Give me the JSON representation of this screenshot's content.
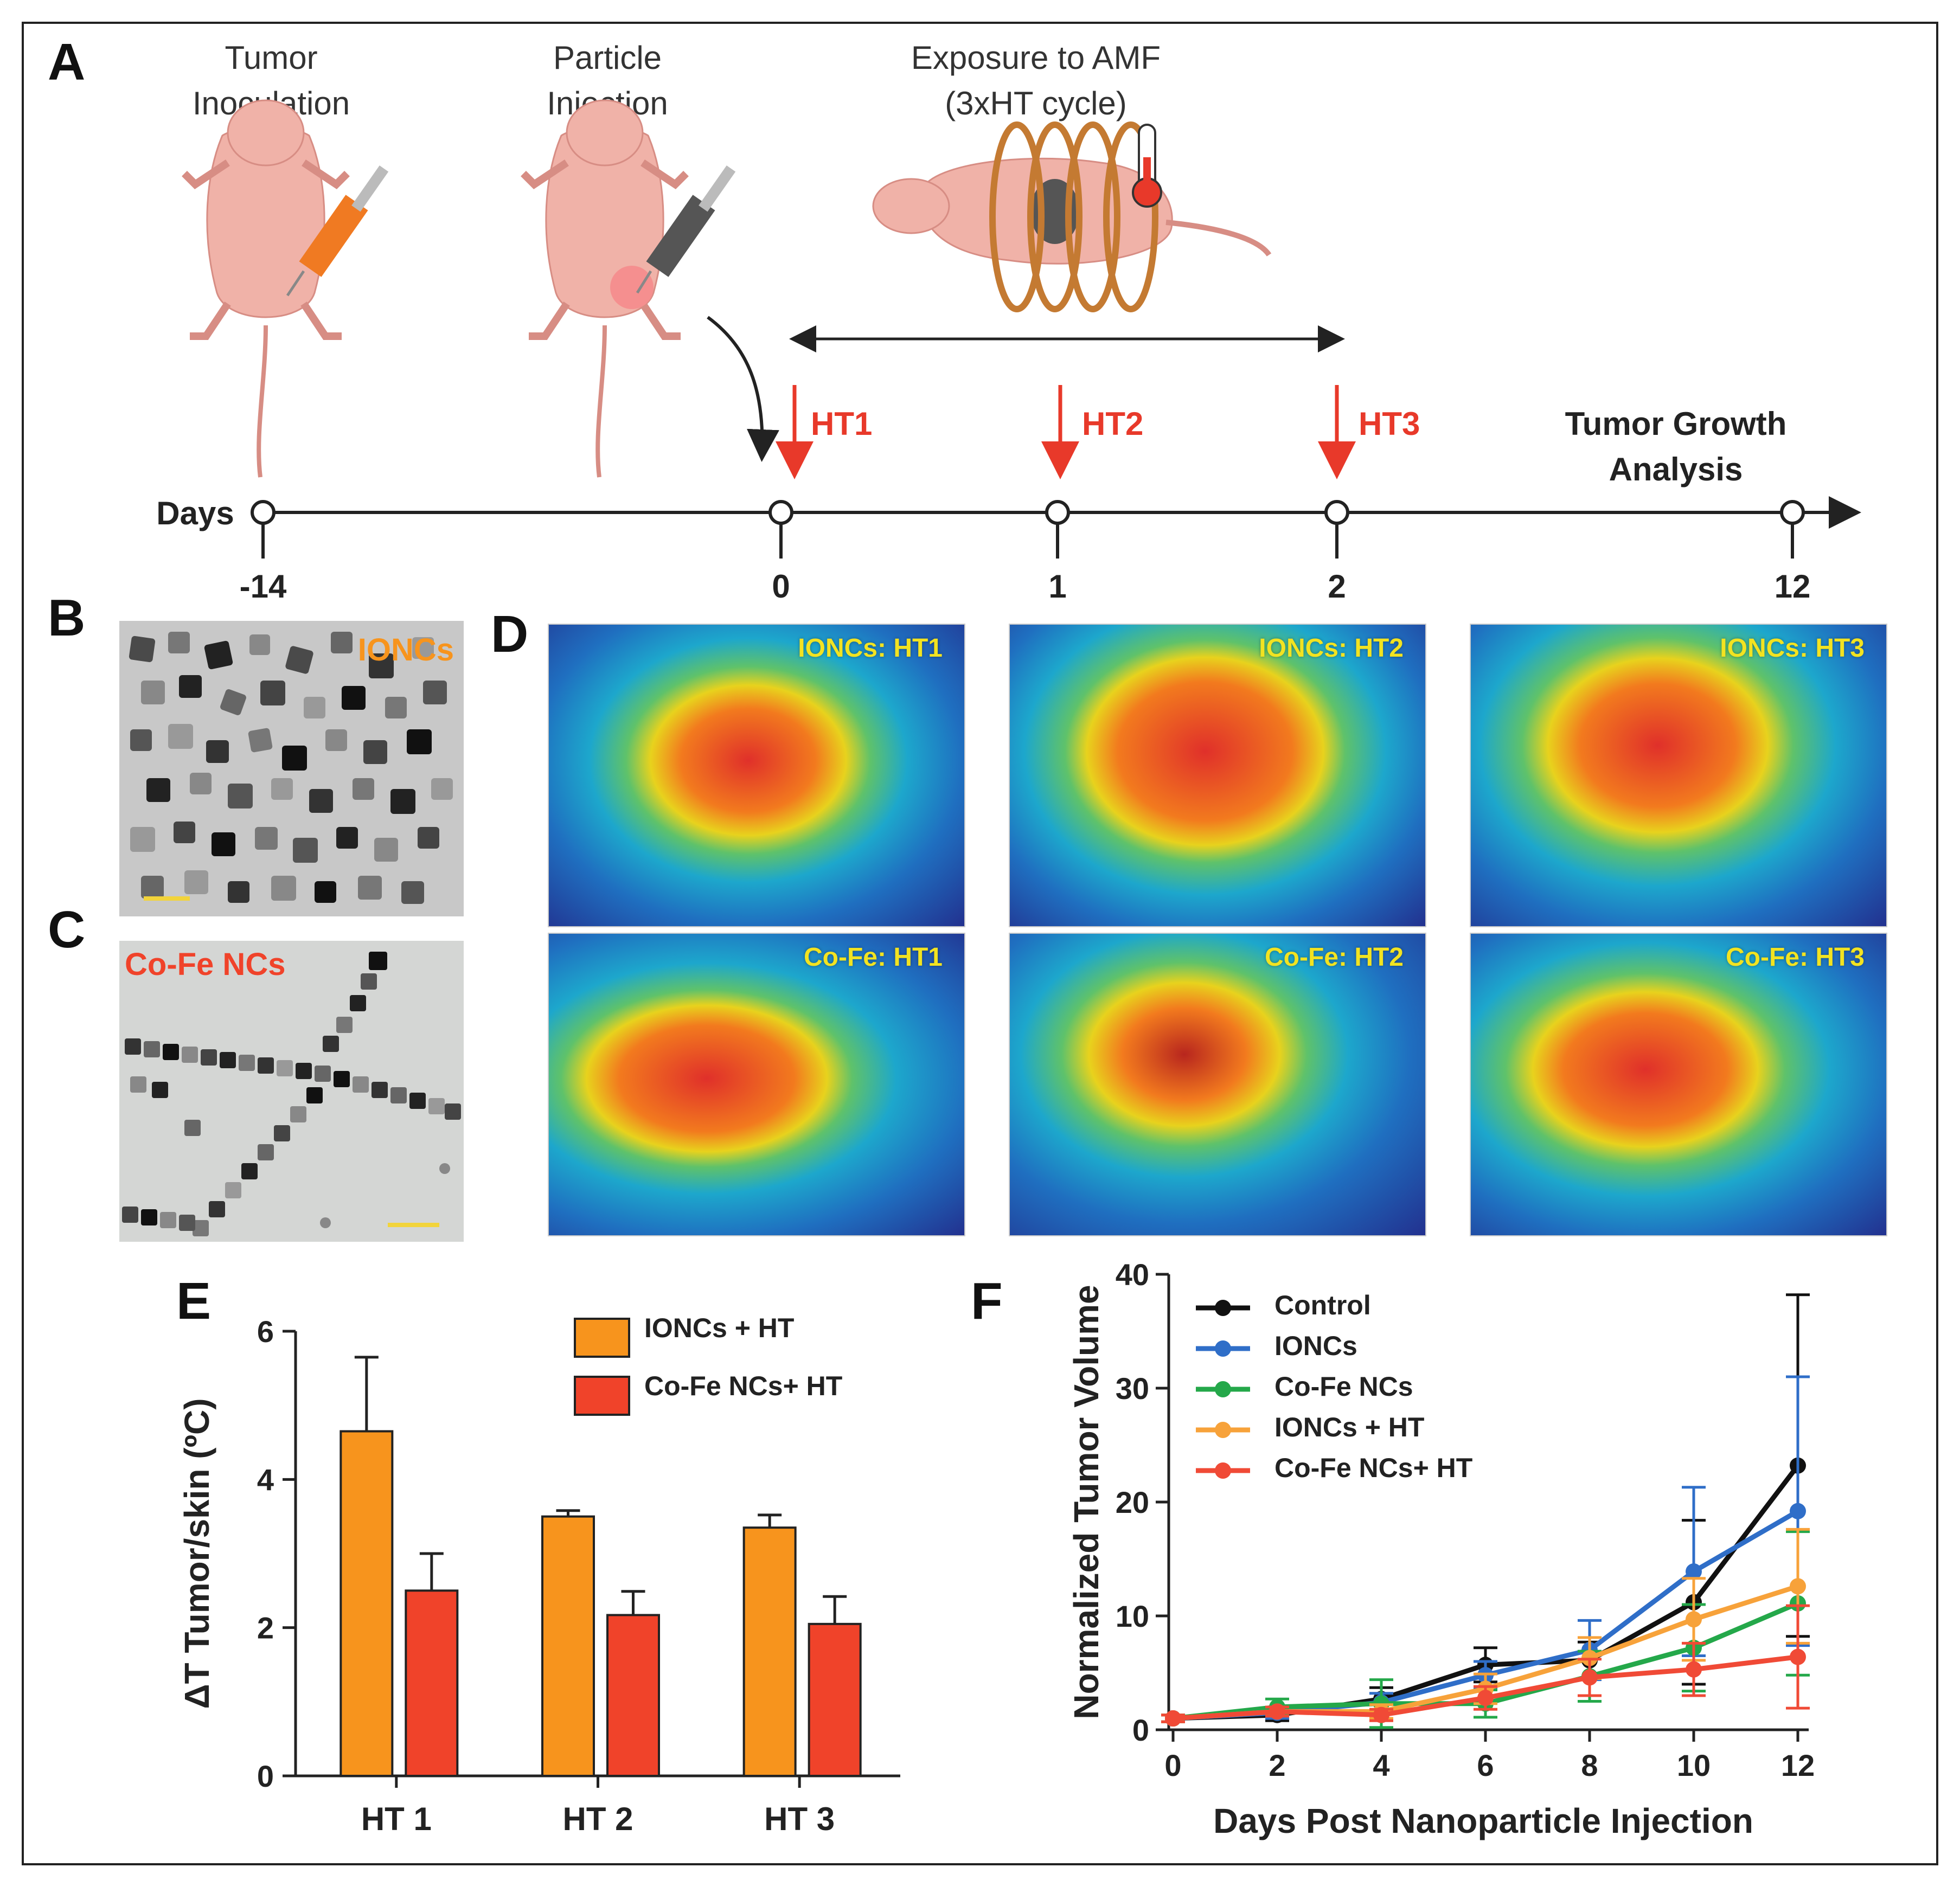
{
  "panels": {
    "A": "A",
    "B": "B",
    "C": "C",
    "D": "D",
    "E": "E",
    "F": "F"
  },
  "timeline": {
    "steps": {
      "tumor_inoculation": "Tumor\nInoculation",
      "particle_injection": "Particle\nInjection",
      "amf_exposure": "Exposure to AMF\n(3xHT cycle)"
    },
    "days_label": "Days",
    "ticks": [
      "-14",
      "0",
      "1",
      "2",
      "12"
    ],
    "ht_labels": [
      "HT1",
      "HT2",
      "HT3"
    ],
    "analysis_label": "Tumor Growth\nAnalysis"
  },
  "tem": {
    "b_label": "IONCs",
    "c_label": "Co-Fe NCs"
  },
  "thermal": {
    "labels": [
      "IONCs: HT1",
      "IONCs: HT2",
      "IONCs: HT3",
      "Co-Fe: HT1",
      "Co-Fe: HT2",
      "Co-Fe: HT3"
    ]
  },
  "colors": {
    "ionc_ht": "#f7941d",
    "cofe_ht": "#f0432a",
    "control": "#111111",
    "ioncs": "#2f6ec8",
    "cofe": "#24a84a",
    "ionc_ht_line": "#f7a23a",
    "cofe_ht_line": "#f04a36",
    "timeline_red": "#e8392a"
  },
  "chart_data": [
    {
      "type": "bar",
      "ylabel": "ΔT Tumor/skin (ºC)",
      "xlabel": "",
      "categories": [
        "HT 1",
        "HT 2",
        "HT 3"
      ],
      "ylim": [
        0,
        6
      ],
      "yticks": [
        "0",
        "2",
        "4",
        "6"
      ],
      "series": [
        {
          "name": "IONCs + HT",
          "values": [
            4.65,
            3.5,
            3.35
          ],
          "errors": [
            1.0,
            0.08,
            0.17
          ]
        },
        {
          "name": "Co-Fe NCs+ HT",
          "values": [
            2.5,
            2.17,
            2.05
          ],
          "errors": [
            0.5,
            0.32,
            0.37
          ]
        }
      ],
      "legend": "top-right"
    },
    {
      "type": "line",
      "ylabel": "Normalized Tumor Volume",
      "xlabel": "Days Post Nanoparticle Injection",
      "x": [
        0,
        2,
        4,
        6,
        8,
        10,
        12
      ],
      "xticks": [
        "0",
        "2",
        "4",
        "6",
        "8",
        "10",
        "12"
      ],
      "ylim": [
        0,
        40
      ],
      "yticks": [
        "0",
        "10",
        "20",
        "30",
        "40"
      ],
      "series": [
        {
          "name": "Control",
          "values": [
            1,
            1.3,
            2.7,
            5.7,
            6.1,
            11.2,
            23.2
          ],
          "errors": [
            0.3,
            0.5,
            1.0,
            1.5,
            1.6,
            7.2,
            15.0
          ]
        },
        {
          "name": "IONCs",
          "values": [
            1,
            1.5,
            2.4,
            4.8,
            7.0,
            13.9,
            19.2
          ],
          "errors": [
            0.3,
            0.5,
            0.8,
            1.2,
            2.6,
            7.4,
            11.8
          ]
        },
        {
          "name": "Co-Fe NCs",
          "values": [
            1,
            2.0,
            2.3,
            2.3,
            4.7,
            7.2,
            11.1
          ],
          "errors": [
            0.3,
            0.7,
            2.1,
            1.2,
            2.2,
            3.8,
            6.3
          ]
        },
        {
          "name": "IONCs + HT",
          "values": [
            1,
            1.6,
            1.6,
            3.6,
            6.3,
            9.7,
            12.6
          ],
          "errors": [
            0.3,
            0.4,
            0.6,
            1.3,
            1.8,
            3.6,
            5.0
          ]
        },
        {
          "name": "Co-Fe NCs+ HT",
          "values": [
            1,
            1.6,
            1.3,
            2.8,
            4.6,
            5.3,
            6.4
          ],
          "errors": [
            0.3,
            0.4,
            0.5,
            1.0,
            1.6,
            2.3,
            4.5
          ]
        }
      ],
      "legend": "top-left"
    }
  ]
}
